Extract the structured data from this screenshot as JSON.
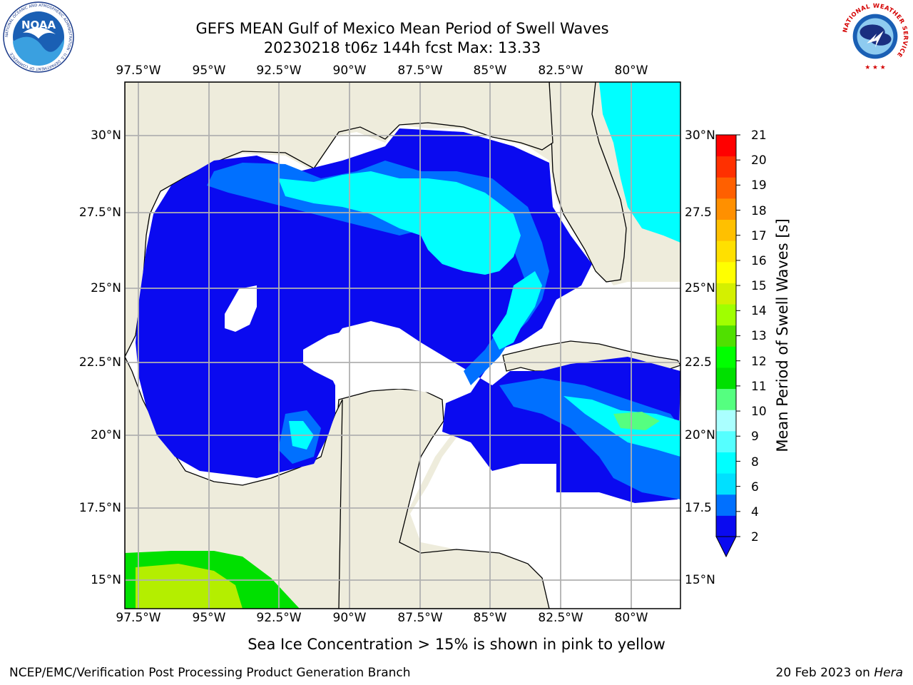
{
  "header": {
    "title_line1": "GEFS MEAN Gulf of Mexico Mean Period of Swell Waves",
    "title_line2": "20230218 t06z 144h fcst   Max: 13.33"
  },
  "axes": {
    "lon_labels": [
      "97.5°W",
      "95°W",
      "92.5°W",
      "90°W",
      "87.5°W",
      "85°W",
      "82.5°W",
      "80°W"
    ],
    "lat_labels_left": [
      "30°N",
      "27.5°N",
      "25°N",
      "22.5°N",
      "20°N",
      "17.5°N",
      "15°N"
    ],
    "lat_labels_right": [
      "30°N",
      "27.5",
      "25°N",
      "22.5",
      "20°N",
      "17.5",
      "15°N"
    ]
  },
  "colorbar": {
    "label": "Mean Period of Swell Waves [s]",
    "ticks": [
      "21",
      "20",
      "19",
      "18",
      "17",
      "16",
      "15",
      "14",
      "13",
      "12",
      "11",
      "10",
      "9",
      "8",
      "6",
      "4",
      "2"
    ],
    "colors": [
      "#0a0af0",
      "#0070ff",
      "#00e0ff",
      "#00ffff",
      "#55ffff",
      "#aaffff",
      "#55ff80",
      "#00e000",
      "#00ff00",
      "#50e000",
      "#a0ff00",
      "#d4f000",
      "#ffff00",
      "#ffe000",
      "#ffc000",
      "#ff9000",
      "#ff6000",
      "#ff3000",
      "#ff0000"
    ]
  },
  "colors": {
    "land": "#eeecdc",
    "ocean_deep": "#0a0af0",
    "ocean_mid": "#0070ff",
    "ocean_light": "#00ffff",
    "ocean_pale": "#55ffff",
    "green": "#00e000",
    "yellowgreen": "#b4ee00"
  },
  "notes": {
    "sea_ice": "Sea Ice Concentration > 15% is shown in pink to yellow"
  },
  "footer": {
    "left": "NCEP/EMC/Verification Post Processing Product Generation Branch",
    "date": "20 Feb 2023 on ",
    "host": "Hera"
  },
  "logos": {
    "noaa_text": "NOAA",
    "noaa_ring": "NATIONAL OCEANIC AND ATMOSPHERIC ADMINISTRATION · U.S. DEPARTMENT OF COMMERCE",
    "nws_ring": "NATIONAL WEATHER SERVICE"
  }
}
